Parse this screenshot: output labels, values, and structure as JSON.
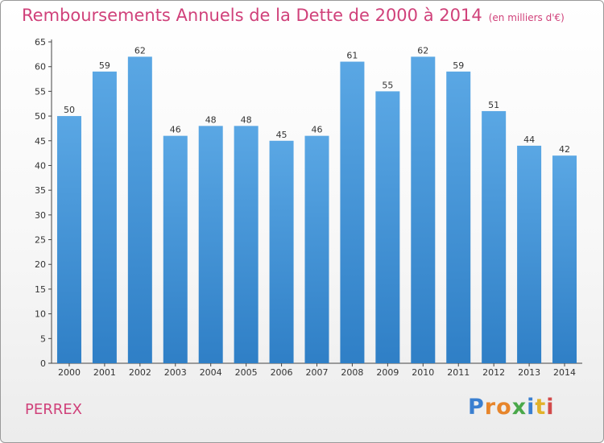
{
  "chart_data": {
    "type": "bar",
    "title": "Remboursements Annuels de la Dette de 2000 à 2014",
    "subtitle": "(en milliers d'€)",
    "categories": [
      "2000",
      "2001",
      "2002",
      "2003",
      "2004",
      "2005",
      "2006",
      "2007",
      "2008",
      "2009",
      "2010",
      "2011",
      "2012",
      "2013",
      "2014"
    ],
    "values": [
      50,
      59,
      62,
      46,
      48,
      48,
      45,
      46,
      61,
      55,
      62,
      59,
      51,
      44,
      42
    ],
    "ylim": [
      0,
      65
    ],
    "yticks": [
      0,
      5,
      10,
      15,
      20,
      25,
      30,
      35,
      40,
      45,
      50,
      55,
      60,
      65
    ],
    "grid": false,
    "data_labels": true,
    "bar_color": "#5aa7e4",
    "bar_color_dark": "#2f7fc6"
  },
  "footer": {
    "town": "PERREX",
    "brand": "Proxiti",
    "brand_colors": [
      "#3a7fd0",
      "#e7852b",
      "#e7852b",
      "#4aa84a",
      "#3a7fd0",
      "#e2b22a",
      "#d24a4a"
    ]
  },
  "colors": {
    "title": "#d0417a",
    "axis": "#333333"
  }
}
